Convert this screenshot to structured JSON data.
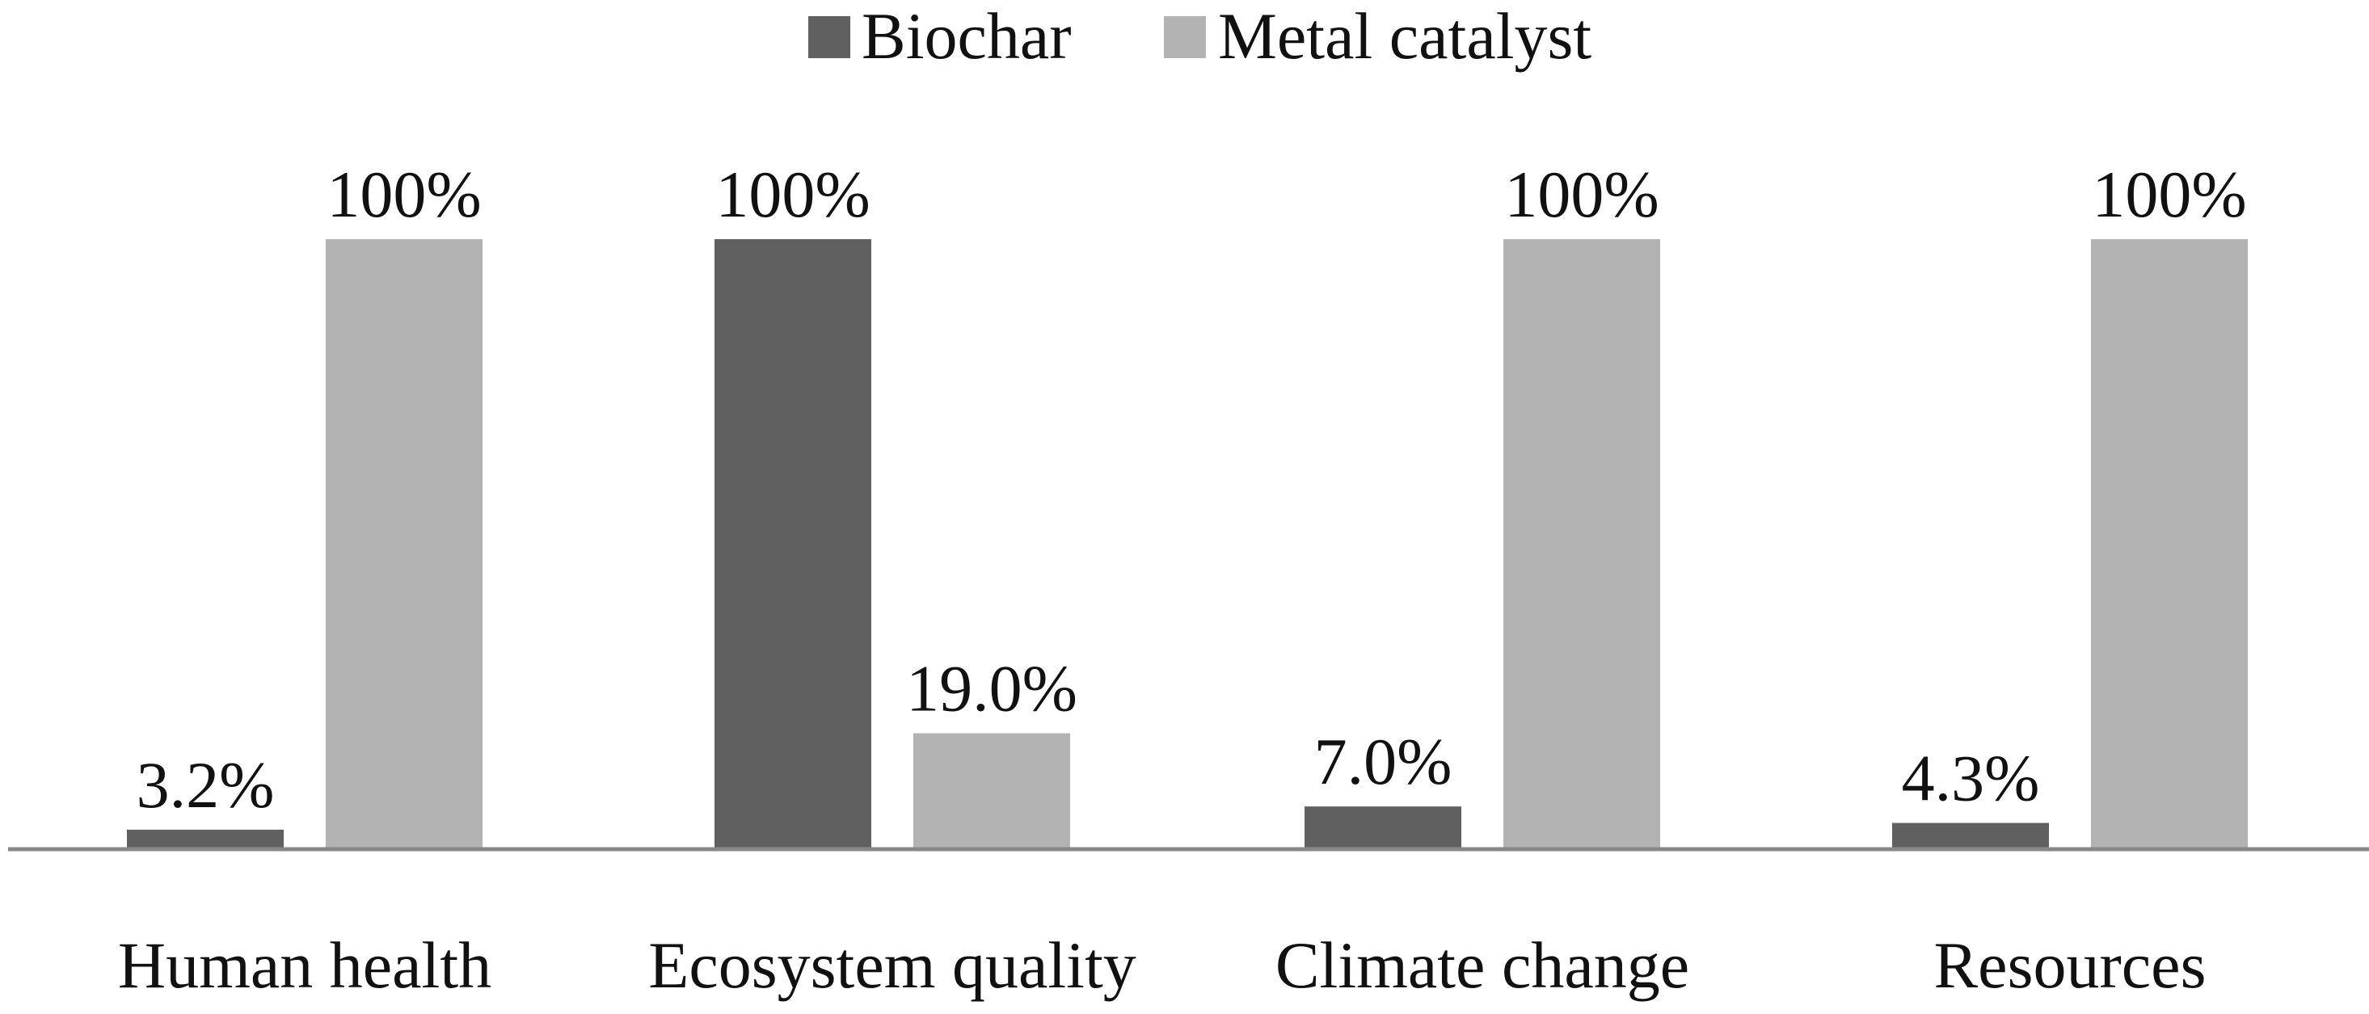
{
  "chart_data": {
    "type": "bar",
    "title": "",
    "xlabel": "",
    "ylabel": "",
    "ylim": [
      0,
      100
    ],
    "grid": false,
    "legend_position": "top-center",
    "categories": [
      "Human health",
      "Ecosystem quality",
      "Climate change",
      "Resources"
    ],
    "series": [
      {
        "name": "Biochar",
        "color": "#606060",
        "values": [
          3.2,
          100,
          7.0,
          4.3
        ],
        "labels": [
          "3.2%",
          "100%",
          "7.0%",
          "4.3%"
        ]
      },
      {
        "name": "Metal catalyst",
        "color": "#b3b3b3",
        "values": [
          100,
          19.0,
          100,
          100
        ],
        "labels": [
          "100%",
          "19.0%",
          "100%",
          "100%"
        ]
      }
    ],
    "axis_color": "#888888"
  }
}
